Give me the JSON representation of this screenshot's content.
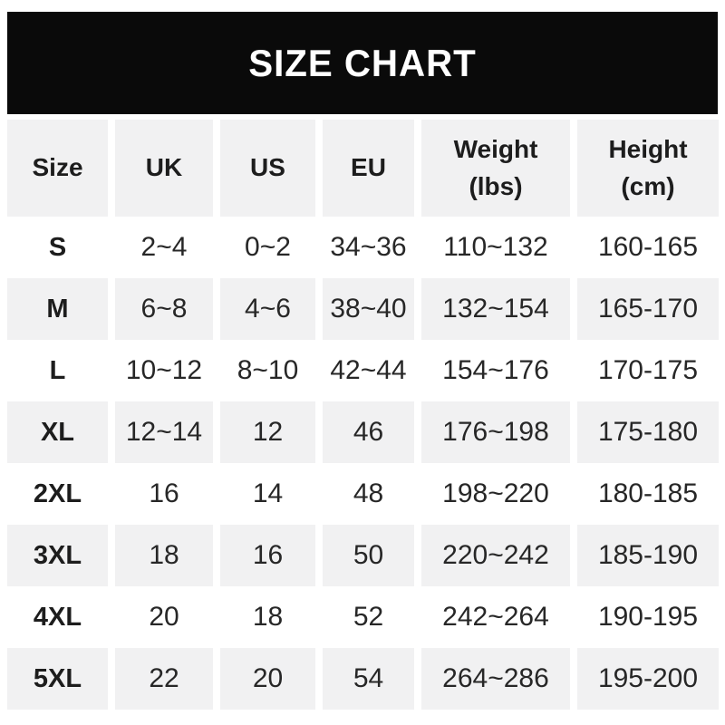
{
  "title": "SIZE CHART",
  "colors": {
    "page_bg": "#ffffff",
    "banner_bg": "#0a0a0a",
    "banner_text": "#ffffff",
    "row_alt_bg": "#f1f1f2",
    "head_text": "#1d1d1d",
    "text": "#272727"
  },
  "chart_data": {
    "type": "table",
    "title": "SIZE CHART",
    "columns": [
      {
        "id": "size",
        "label": "Size"
      },
      {
        "id": "uk",
        "label": "UK"
      },
      {
        "id": "us",
        "label": "US"
      },
      {
        "id": "eu",
        "label": "EU"
      },
      {
        "id": "weight",
        "label": "Weight\n(lbs)"
      },
      {
        "id": "height",
        "label": "Height\n(cm)"
      }
    ],
    "rows": [
      [
        "S",
        "2~4",
        "0~2",
        "34~36",
        "110~132",
        "160-165"
      ],
      [
        "M",
        "6~8",
        "4~6",
        "38~40",
        "132~154",
        "165-170"
      ],
      [
        "L",
        "10~12",
        "8~10",
        "42~44",
        "154~176",
        "170-175"
      ],
      [
        "XL",
        "12~14",
        "12",
        "46",
        "176~198",
        "175-180"
      ],
      [
        "2XL",
        "16",
        "14",
        "48",
        "198~220",
        "180-185"
      ],
      [
        "3XL",
        "18",
        "16",
        "50",
        "220~242",
        "185-190"
      ],
      [
        "4XL",
        "20",
        "18",
        "52",
        "242~264",
        "190-195"
      ],
      [
        "5XL",
        "22",
        "20",
        "54",
        "264~286",
        "195-200"
      ]
    ]
  }
}
